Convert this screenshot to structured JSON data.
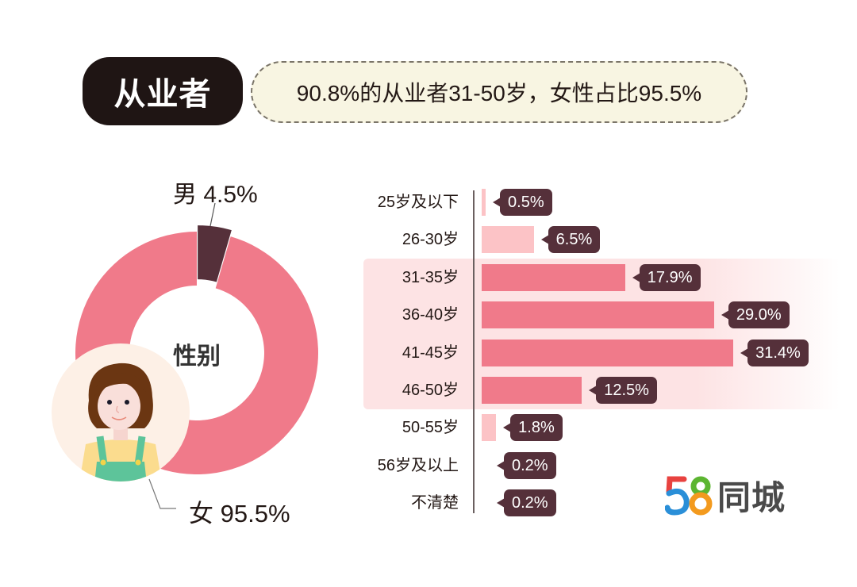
{
  "header": {
    "title": "从业者",
    "summary": "90.8%的从业者31-50岁，女性占比95.5%"
  },
  "colors": {
    "female": "#f07a8a",
    "male": "#55303a",
    "bar_highlight": "#f07a8a",
    "bar_light": "#fcc3c6",
    "band": "#fde3e4",
    "bubble": "#55303a",
    "summary_bg": "#f8f5e2",
    "title_bg": "#1f1514"
  },
  "donut": {
    "center_label": "性别",
    "male_label": "男 4.5%",
    "female_label": "女 95.5%"
  },
  "logo": {
    "digits": "58",
    "text": "同城"
  },
  "chart_data": [
    {
      "type": "pie",
      "title": "性别",
      "categories": [
        "男",
        "女"
      ],
      "values": [
        4.5,
        95.5
      ],
      "unit": "%",
      "style": "donut, male slice exploded"
    },
    {
      "type": "bar",
      "orientation": "horizontal",
      "title": "年龄分布",
      "categories": [
        "25岁及以下",
        "26-30岁",
        "31-35岁",
        "36-40岁",
        "41-45岁",
        "46-50岁",
        "50-55岁",
        "56岁及以上",
        "不清楚"
      ],
      "values": [
        0.5,
        6.5,
        17.9,
        29.0,
        31.4,
        12.5,
        1.8,
        0.2,
        0.2
      ],
      "labels": [
        "0.5%",
        "6.5%",
        "17.9%",
        "29.0%",
        "31.4%",
        "12.5%",
        "1.8%",
        "0.2%",
        "0.2%"
      ],
      "highlighted": [
        false,
        false,
        true,
        true,
        true,
        true,
        false,
        false,
        false
      ],
      "unit": "%",
      "grid": false
    }
  ]
}
